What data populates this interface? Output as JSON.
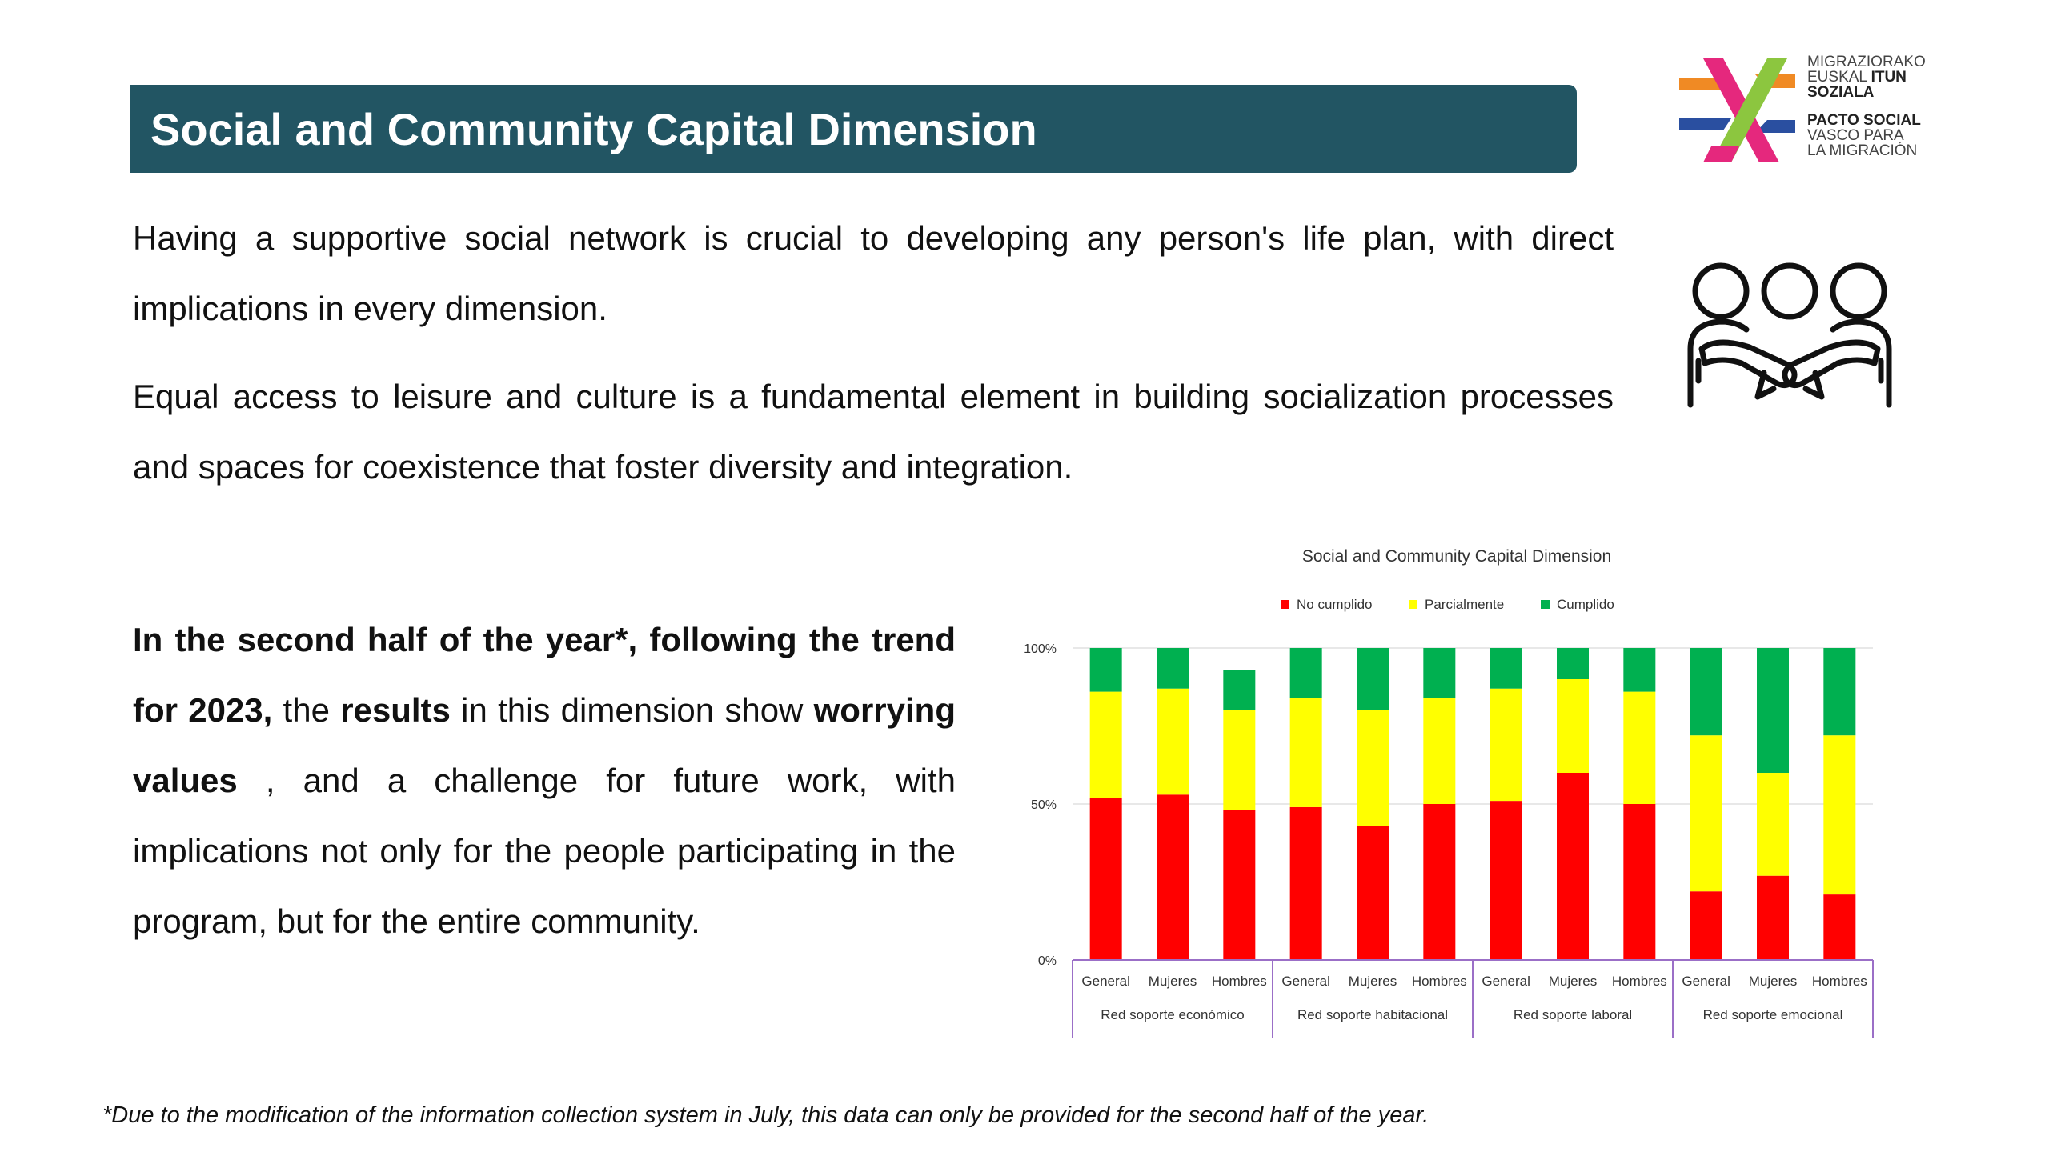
{
  "header": {
    "title": "Social and Community Capital Dimension"
  },
  "logo": {
    "line1": "MIGRAZIORAKO",
    "line2a": "EUSKAL ",
    "line2b": "ITUN",
    "line3": "SOZIALA",
    "line4": "PACTO SOCIAL",
    "line5": "VASCO PARA",
    "line6": "LA MIGRACIÓN"
  },
  "intro": {
    "p1": "Having a supportive social network is crucial to developing any person's life plan, with direct implications in every dimension.",
    "p2": "Equal access to leisure and culture is a fundamental element in building socialization processes and spaces for coexistence that foster diversity and integration."
  },
  "icon": {
    "name": "people-embracing-icon"
  },
  "summary": {
    "b1": "In the second half of the year*, following the trend for 2023,",
    "t1": " the ",
    "b2": "results",
    "t2": " in this dimension show ",
    "b3": "worrying values",
    "t3": " , and a challenge for future work, with implications not only for the people participating in the program, but for the entire community."
  },
  "footnote": "*Due to the modification of the information collection system in July, this data can only be provided for the second half of the year.",
  "chart_data": {
    "type": "bar",
    "stacked": true,
    "title": "Social and Community Capital Dimension",
    "legend_position": "top",
    "ylim": [
      0,
      100
    ],
    "yticks": [
      "0%",
      "50%",
      "100%"
    ],
    "categories": [
      "General",
      "Mujeres",
      "Hombres",
      "General",
      "Mujeres",
      "Hombres",
      "General",
      "Mujeres",
      "Hombres",
      "General",
      "Mujeres",
      "Hombres"
    ],
    "groups": [
      "Red soporte económico",
      "Red soporte habitacional",
      "Red soporte laboral",
      "Red soporte emocional"
    ],
    "series": [
      {
        "name": "No cumplido",
        "color": "#ff0000",
        "values": [
          52,
          53,
          48,
          49,
          43,
          50,
          51,
          60,
          50,
          22,
          27,
          21
        ]
      },
      {
        "name": "Parcialmente",
        "color": "#ffff00",
        "values": [
          34,
          34,
          32,
          35,
          37,
          34,
          36,
          30,
          36,
          50,
          33,
          51
        ]
      },
      {
        "name": "Cumplido",
        "color": "#00b050",
        "values": [
          14,
          13,
          13,
          16,
          20,
          16,
          13,
          10,
          14,
          28,
          40,
          28
        ]
      }
    ]
  }
}
